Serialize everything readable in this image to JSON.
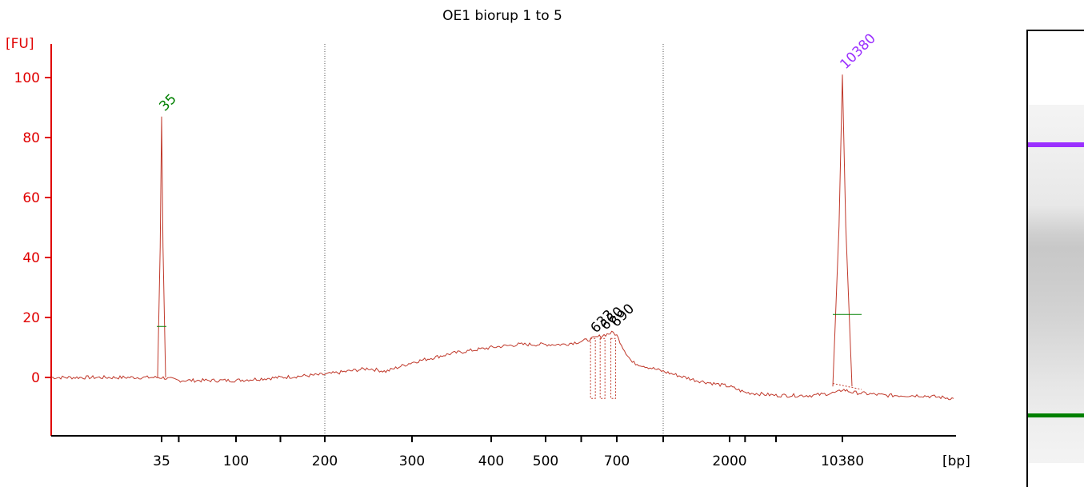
{
  "chart_data": {
    "type": "line",
    "title": "OE1 biorup 1 to 5",
    "ylabel": "[FU]",
    "xlabel": "[bp]",
    "ylim": [
      -18,
      112
    ],
    "yticks": [
      0,
      20,
      40,
      60,
      80,
      100
    ],
    "xtick_labels": [
      "35",
      "100",
      "200",
      "300",
      "400",
      "500",
      "700",
      "2000",
      "10380"
    ],
    "grid": "vertical dotted lines at 200 and near 1000 bp",
    "series": [
      {
        "color": "#c0392b",
        "x": [
          15,
          35,
          50,
          100,
          150,
          200,
          250,
          270,
          300,
          350,
          400,
          450,
          500,
          550,
          600,
          633,
          660,
          690,
          700,
          750,
          800,
          1000,
          1500,
          2000,
          3000,
          5000,
          8000,
          10000,
          10380,
          11000,
          13000,
          15000,
          17000
        ],
        "y": [
          0,
          0,
          -1,
          -1,
          0,
          1,
          3,
          2,
          5,
          8,
          10,
          11,
          11,
          11,
          12,
          13,
          14,
          15,
          14,
          9,
          5,
          2,
          -1,
          -3,
          -5,
          -6,
          -6,
          -5,
          -4,
          -5,
          -6,
          -6,
          -7
        ]
      }
    ],
    "peaks": [
      {
        "label": "35",
        "x": 35,
        "y": 87,
        "color": "#008000"
      },
      {
        "label": "633",
        "x": 633,
        "y": 13,
        "color": "#000000"
      },
      {
        "label": "660",
        "x": 660,
        "y": 14,
        "color": "#000000"
      },
      {
        "label": "690",
        "x": 690,
        "y": 15,
        "color": "#000000"
      },
      {
        "label": "10380",
        "x": 10380,
        "y": 101,
        "color": "#9b30ff"
      }
    ]
  },
  "gel": {
    "upper_marker_color": "#9b30ff",
    "lower_marker_color": "#008000"
  }
}
